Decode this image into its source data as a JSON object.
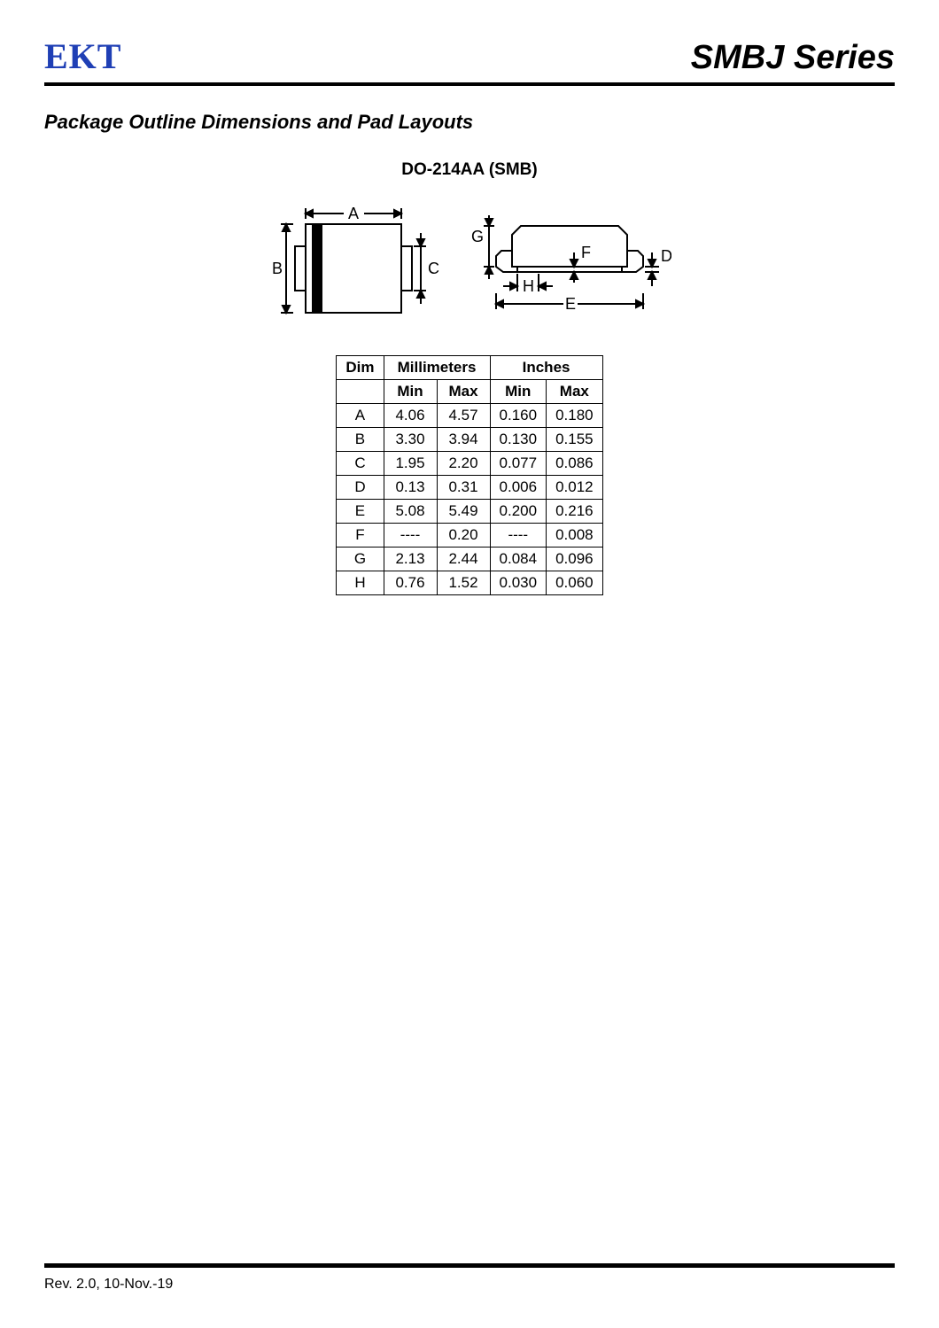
{
  "header": {
    "logo": "EKT",
    "series": "SMBJ Series"
  },
  "section_title": "Package Outline Dimensions and Pad Layouts",
  "package_title": "DO-214AA (SMB)",
  "diagram": {
    "labels": [
      "A",
      "B",
      "C",
      "D",
      "E",
      "F",
      "G",
      "H"
    ]
  },
  "table": {
    "headers": {
      "dim": "Dim",
      "mm": "Millimeters",
      "in": "Inches",
      "min": "Min",
      "max": "Max"
    },
    "rows": [
      {
        "dim": "A",
        "mm_min": "4.06",
        "mm_max": "4.57",
        "in_min": "0.160",
        "in_max": "0.180"
      },
      {
        "dim": "B",
        "mm_min": "3.30",
        "mm_max": "3.94",
        "in_min": "0.130",
        "in_max": "0.155"
      },
      {
        "dim": "C",
        "mm_min": "1.95",
        "mm_max": "2.20",
        "in_min": "0.077",
        "in_max": "0.086"
      },
      {
        "dim": "D",
        "mm_min": "0.13",
        "mm_max": "0.31",
        "in_min": "0.006",
        "in_max": "0.012"
      },
      {
        "dim": "E",
        "mm_min": "5.08",
        "mm_max": "5.49",
        "in_min": "0.200",
        "in_max": "0.216"
      },
      {
        "dim": "F",
        "mm_min": "----",
        "mm_max": "0.20",
        "in_min": "----",
        "in_max": "0.008"
      },
      {
        "dim": "G",
        "mm_min": "2.13",
        "mm_max": "2.44",
        "in_min": "0.084",
        "in_max": "0.096"
      },
      {
        "dim": "H",
        "mm_min": "0.76",
        "mm_max": "1.52",
        "in_min": "0.030",
        "in_max": "0.060"
      }
    ]
  },
  "footer": {
    "revision": "Rev. 2.0, 10-Nov.-19"
  }
}
